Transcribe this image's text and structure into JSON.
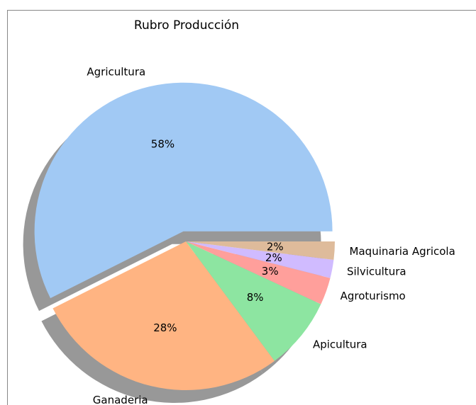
{
  "chart_data": {
    "type": "pie",
    "title": "Rubro Producción",
    "categories": [
      "Agricultura",
      "Ganaderia",
      "Apicultura",
      "Agroturismo",
      "Silvicultura",
      "Maquinaria Agricola"
    ],
    "values": [
      58,
      28,
      8,
      3,
      2,
      2
    ],
    "value_labels": [
      "58%",
      "28%",
      "8%",
      "3%",
      "2%",
      "2%"
    ],
    "colors": [
      "#a1c9f4",
      "#ffb482",
      "#8de5a1",
      "#ff9f9b",
      "#d0bbff",
      "#debb9b"
    ],
    "explode": [
      0.07,
      0,
      0,
      0,
      0,
      0
    ],
    "shadow": true
  }
}
